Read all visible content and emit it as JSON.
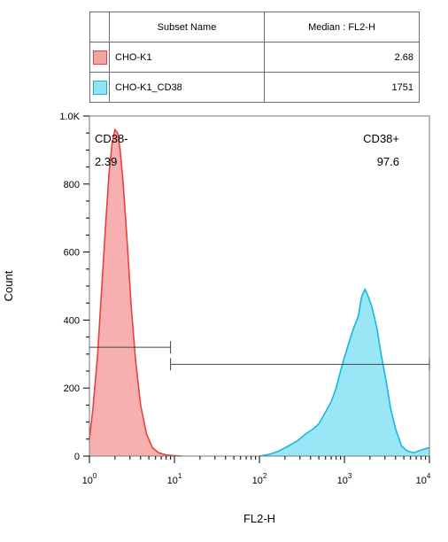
{
  "legend": {
    "headers": [
      "",
      "Subset Name",
      "Median : FL2-H"
    ],
    "rows": [
      {
        "name": "CHO-K1",
        "median": "2.68",
        "fill": "#f4a3a3",
        "stroke": "#e8413f"
      },
      {
        "name": "CHO-K1_CD38",
        "median": "1751",
        "fill": "#8ee3f4",
        "stroke": "#15b5e0"
      }
    ]
  },
  "chart_data": {
    "type": "area",
    "xlabel": "FL2-H",
    "ylabel": "Count",
    "x_scale": "log",
    "xlim": [
      1,
      10000
    ],
    "ylim": [
      0,
      1000
    ],
    "y_ticks": [
      0,
      200,
      400,
      600,
      800,
      1000
    ],
    "y_tick_labels": [
      "0",
      "200",
      "400",
      "600",
      "800",
      "1.0K"
    ],
    "x_ticks": [
      1,
      10,
      100,
      1000,
      10000
    ],
    "x_tick_labels": [
      {
        "base": "10",
        "exp": "0"
      },
      {
        "base": "10",
        "exp": "1"
      },
      {
        "base": "10",
        "exp": "2"
      },
      {
        "base": "10",
        "exp": "3"
      },
      {
        "base": "10",
        "exp": "4"
      }
    ],
    "grid": false,
    "series": [
      {
        "name": "CHO-K1",
        "fill": "#f6a8a8",
        "stroke": "#e8413f",
        "points": [
          [
            1.0,
            50
          ],
          [
            1.1,
            140
          ],
          [
            1.25,
            300
          ],
          [
            1.4,
            500
          ],
          [
            1.55,
            680
          ],
          [
            1.7,
            830
          ],
          [
            1.85,
            920
          ],
          [
            2.0,
            960
          ],
          [
            2.15,
            950
          ],
          [
            2.3,
            900
          ],
          [
            2.5,
            800
          ],
          [
            2.8,
            620
          ],
          [
            3.1,
            440
          ],
          [
            3.5,
            280
          ],
          [
            4.0,
            150
          ],
          [
            4.7,
            65
          ],
          [
            5.5,
            25
          ],
          [
            6.5,
            10
          ],
          [
            8.0,
            3
          ],
          [
            12.0,
            0
          ]
        ]
      },
      {
        "name": "CHO-K1_CD38",
        "fill": "#8fe4f5",
        "stroke": "#16b8e2",
        "points": [
          [
            100,
            0
          ],
          [
            130,
            5
          ],
          [
            170,
            15
          ],
          [
            220,
            30
          ],
          [
            280,
            45
          ],
          [
            350,
            65
          ],
          [
            430,
            80
          ],
          [
            500,
            95
          ],
          [
            600,
            130
          ],
          [
            700,
            160
          ],
          [
            800,
            200
          ],
          [
            900,
            250
          ],
          [
            1000,
            290
          ],
          [
            1150,
            340
          ],
          [
            1300,
            380
          ],
          [
            1450,
            410
          ],
          [
            1600,
            470
          ],
          [
            1750,
            490
          ],
          [
            1900,
            470
          ],
          [
            2100,
            440
          ],
          [
            2400,
            380
          ],
          [
            2700,
            300
          ],
          [
            3100,
            220
          ],
          [
            3500,
            140
          ],
          [
            4000,
            80
          ],
          [
            4700,
            30
          ],
          [
            5500,
            15
          ],
          [
            6500,
            10
          ],
          [
            8000,
            18
          ],
          [
            10000,
            25
          ]
        ]
      }
    ],
    "gates": [
      {
        "label": "CD38-",
        "value": "2.39",
        "range": [
          1,
          9
        ],
        "y": 320
      },
      {
        "label": "CD38+",
        "value": "97.6",
        "range": [
          9,
          10000
        ],
        "y": 270
      }
    ]
  }
}
